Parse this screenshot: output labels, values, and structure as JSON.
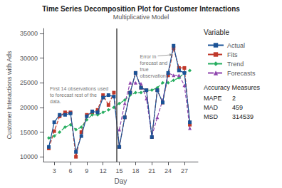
{
  "chart_data": {
    "type": "line",
    "title": "Time Series Decomposition Plot for Customer Interactions",
    "subtitle": "Multiplicative Model",
    "xlabel": "Day",
    "ylabel": "Customer Interactions with Ads",
    "xlim": [
      1,
      29.5
    ],
    "ylim": [
      9000,
      36000
    ],
    "xticks": [
      3,
      6,
      9,
      12,
      15,
      18,
      21,
      24,
      27
    ],
    "yticks": [
      10000,
      15000,
      20000,
      25000,
      30000,
      35000
    ],
    "grid": false,
    "legend": "right",
    "legend_title": "Variable",
    "divider_x": 14.5,
    "annotations": [
      {
        "text": "First 14 observations used\nto forecast rest of the\ndata.",
        "x": 2.2,
        "y": 24500
      },
      {
        "text": "Error in\nforecast and\ntrue\nobservation.",
        "x": 18.8,
        "y": 31000,
        "arrow_to": [
          24.8,
          30700
        ]
      }
    ],
    "accuracy": {
      "title": "Accuracy Measures",
      "rows": [
        {
          "label": "MAPE",
          "value": 2
        },
        {
          "label": "MAD",
          "value": 459
        },
        {
          "label": "MSD",
          "value": 314539
        }
      ]
    },
    "series": [
      {
        "name": "Actual",
        "color": "#1a5296",
        "marker": "square",
        "line_style": "solid",
        "x": [
          2,
          3,
          4,
          5,
          6,
          7,
          8,
          9,
          10,
          11,
          12,
          13,
          14,
          15,
          16,
          17,
          18,
          19,
          20,
          21,
          22,
          23,
          24,
          25,
          26,
          27,
          28
        ],
        "values": [
          12000,
          17000,
          18500,
          18500,
          18800,
          11000,
          14200,
          18200,
          19200,
          19000,
          22000,
          22500,
          22200,
          12000,
          18000,
          23000,
          27000,
          24000,
          23500,
          14000,
          23500,
          21000,
          27000,
          32500,
          27500,
          27000,
          17000
        ]
      },
      {
        "name": "Fits",
        "color": "#c0392b",
        "marker": "square",
        "line_style": "dashed",
        "x": [
          2,
          3,
          4,
          5,
          6,
          7,
          8,
          9,
          10,
          11,
          12,
          13,
          14,
          15,
          16,
          17,
          18,
          19,
          20,
          21,
          22,
          23,
          24,
          25,
          26,
          27,
          28
        ],
        "values": [
          11700,
          15200,
          18200,
          19000,
          19000,
          10000,
          15000,
          18500,
          19000,
          19500,
          22500,
          20500,
          23000,
          12000,
          18000,
          23000,
          27000,
          24000,
          23500,
          14000,
          23500,
          21000,
          26500,
          32000,
          28000,
          28000,
          16500
        ]
      },
      {
        "name": "Trend",
        "color": "#27ae60",
        "marker": "diamond",
        "line_style": "dashed",
        "x": [
          2,
          3,
          4,
          5,
          6,
          7,
          8,
          9,
          10,
          11,
          12,
          13,
          14,
          15,
          16,
          17,
          18,
          19,
          20,
          21,
          22,
          23,
          24,
          25,
          26,
          27,
          28
        ],
        "values": [
          13800,
          14200,
          15000,
          16000,
          16500,
          15500,
          16000,
          17500,
          18500,
          18500,
          19000,
          19500,
          20000,
          20800,
          21500,
          22500,
          23000,
          23000,
          23500,
          23500,
          24000,
          25000,
          25000,
          25500,
          26000,
          27000,
          27500
        ]
      },
      {
        "name": "Forecasts",
        "color": "#8e44ad",
        "marker": "triangle",
        "line_style": "dashed",
        "x": [
          15,
          16,
          17,
          18,
          19,
          20,
          21,
          22,
          23,
          24,
          25,
          26,
          27,
          28
        ],
        "values": [
          15500,
          20800,
          25000,
          25000,
          24800,
          21800,
          14200,
          18000,
          21500,
          27000,
          26500,
          26500,
          24500,
          15800
        ]
      }
    ]
  }
}
